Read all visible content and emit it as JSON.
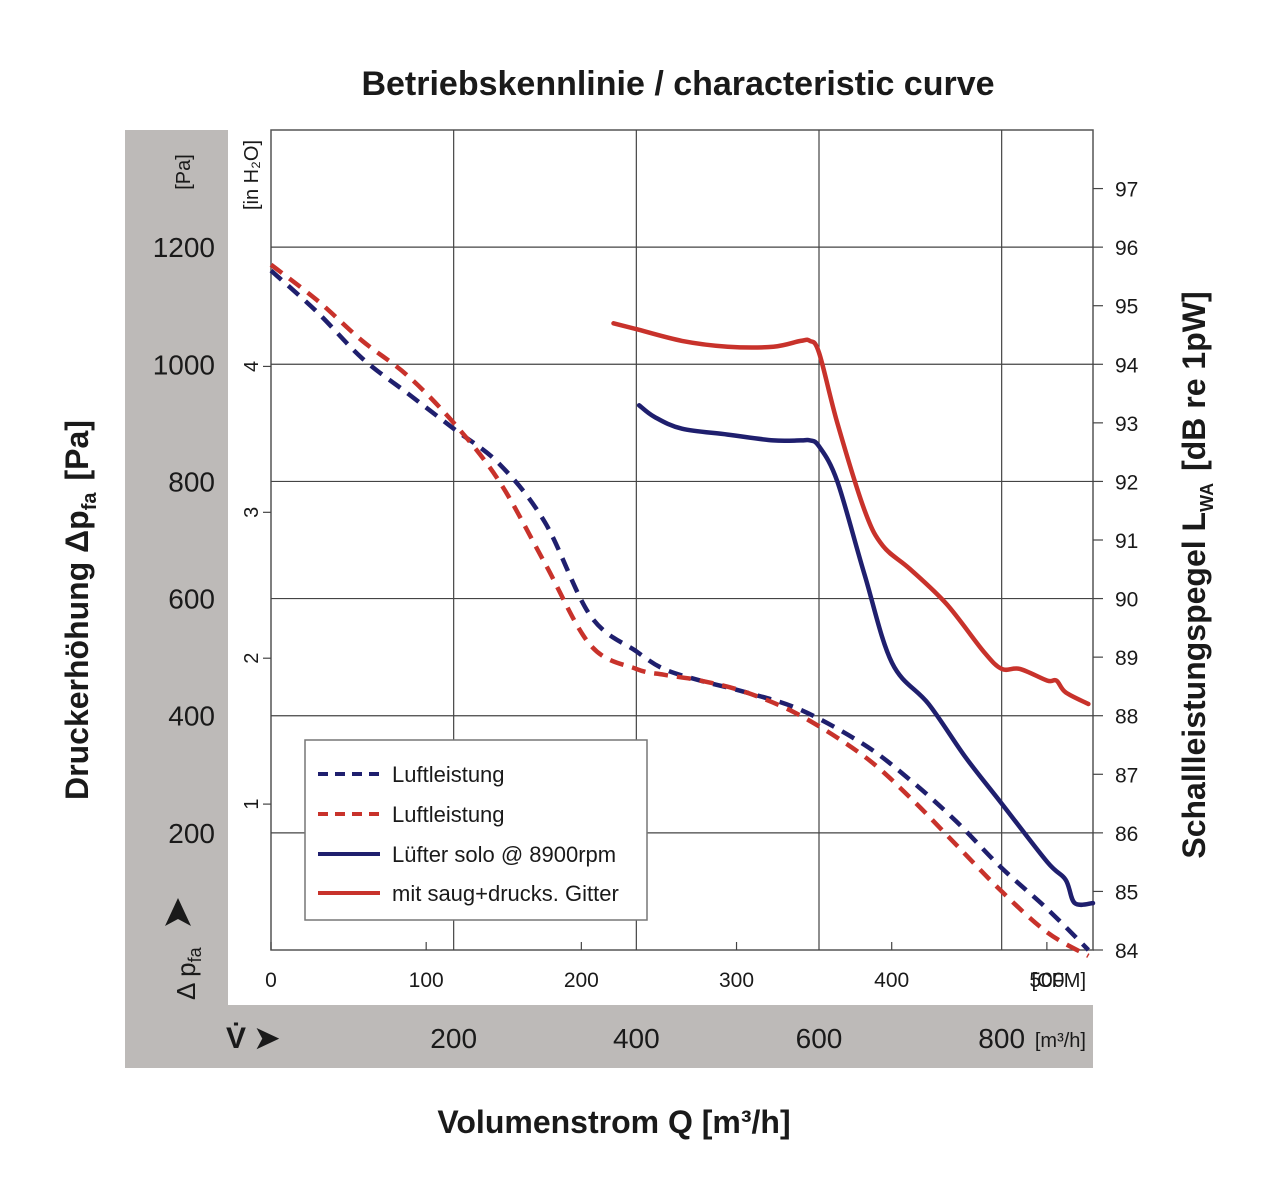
{
  "title": "Betriebskennlinie / characteristic curve",
  "chart_data": {
    "type": "line",
    "title": "Betriebskennlinie / characteristic curve",
    "xlabel": "Volumenstrom Q [m³/h]",
    "ylabel": "Druckerhöhung Δp",
    "ylabel_sub": "fa",
    "ylabel_unit": "[Pa]",
    "y2label": "Schallleistungspegel L",
    "y2label_sub": "WA",
    "y2label_unit": "[dB re 1pW]",
    "x_unit": "[m³/h]",
    "x_cfm_unit": "[CFM]",
    "y_unit": "[Pa]",
    "y_inh2o_unit": "[in H₂O]",
    "v_symbol": "V̇ ➤",
    "dp_symbol": "Δ p",
    "dp_symbol_sub": "fa",
    "xlim": [
      0,
      900
    ],
    "ylim": [
      0,
      1400
    ],
    "y2lim": [
      84,
      98
    ],
    "x_ticks": [
      200,
      400,
      600,
      800
    ],
    "x_cfm_ticks": [
      0,
      100,
      200,
      300,
      400,
      500
    ],
    "y_ticks": [
      200,
      400,
      600,
      800,
      1000,
      1200
    ],
    "y_inh2o_ticks": [
      1,
      2,
      3,
      4
    ],
    "y2_ticks": [
      84,
      85,
      86,
      87,
      88,
      89,
      90,
      91,
      92,
      93,
      94,
      95,
      96,
      97
    ],
    "grid": true,
    "legend_position": "lower-left",
    "series": [
      {
        "name": "Luftleistung",
        "color": "#1f1f6e",
        "style": "dashed",
        "axis": "left",
        "x": [
          0,
          50,
          100,
          150,
          200,
          250,
          300,
          350,
          400,
          430,
          470,
          520,
          580,
          650,
          700,
          750,
          800,
          850,
          895
        ],
        "y": [
          1160,
          1090,
          1010,
          950,
          890,
          830,
          730,
          570,
          510,
          480,
          460,
          440,
          410,
          350,
          290,
          220,
          140,
          70,
          0
        ]
      },
      {
        "name": "Luftleistung",
        "color": "#c8322b",
        "style": "dashed",
        "axis": "left",
        "x": [
          0,
          50,
          100,
          150,
          200,
          250,
          300,
          350,
          400,
          430,
          470,
          520,
          580,
          650,
          700,
          750,
          800,
          850,
          895
        ],
        "y": [
          1170,
          1110,
          1040,
          980,
          900,
          800,
          660,
          520,
          480,
          470,
          460,
          440,
          400,
          330,
          260,
          180,
          100,
          30,
          -10
        ]
      },
      {
        "name": "Lüfter solo @ 8900rpm",
        "color": "#1f1f6e",
        "style": "solid",
        "axis": "right",
        "x": [
          403,
          420,
          450,
          500,
          550,
          580,
          590,
          600,
          620,
          650,
          680,
          720,
          760,
          800,
          850,
          870,
          880,
          900
        ],
        "y": [
          93.3,
          93.1,
          92.9,
          92.8,
          92.7,
          92.7,
          92.7,
          92.6,
          92.0,
          90.4,
          88.9,
          88.2,
          87.3,
          86.5,
          85.5,
          85.2,
          84.8,
          84.8
        ]
      },
      {
        "name": "mit saug+drucks. Gitter",
        "color": "#c8322b",
        "style": "solid",
        "axis": "right",
        "x": [
          375,
          400,
          450,
          500,
          550,
          580,
          590,
          600,
          620,
          650,
          670,
          700,
          740,
          780,
          800,
          820,
          850,
          860,
          870,
          895
        ],
        "y": [
          94.7,
          94.6,
          94.4,
          94.3,
          94.3,
          94.4,
          94.4,
          94.2,
          93.0,
          91.5,
          90.9,
          90.5,
          89.9,
          89.1,
          88.8,
          88.8,
          88.6,
          88.6,
          88.4,
          88.2
        ]
      }
    ]
  }
}
